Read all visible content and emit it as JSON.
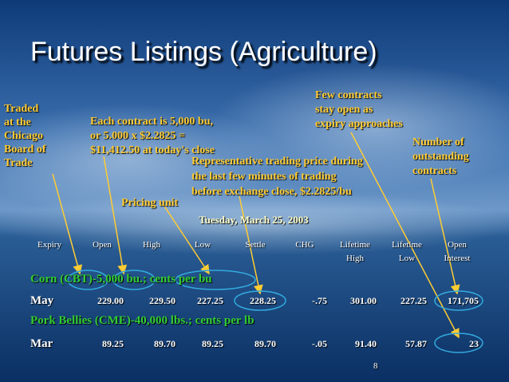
{
  "title": "Futures Listings (Agriculture)",
  "annotations": [
    {
      "lines": [
        "Traded",
        "at the",
        "Chicago",
        "Board of",
        "Trade"
      ]
    },
    {
      "lines": [
        "Each contract is 5,000 bu,",
        "or 5.000 x $2.2825 =",
        "$11,412.50 at today's close"
      ]
    },
    {
      "lines": [
        "Few contracts",
        "stay open as",
        "expiry approaches"
      ]
    },
    {
      "lines": [
        "Number of",
        "outstanding",
        "contracts"
      ]
    },
    {
      "lines": [
        "Representative trading price during",
        "the last few minutes of trading",
        "before exchange close, $2.2825/bu"
      ]
    },
    {
      "lines": [
        "Pricing unit"
      ]
    }
  ],
  "date": "Tuesday, March 25, 2003",
  "table": {
    "header": [
      [
        "Expiry"
      ],
      [
        "Open"
      ],
      [
        "High"
      ],
      [
        "Low"
      ],
      [
        "Settle"
      ],
      [
        "CHG"
      ],
      [
        "Lifetime",
        "High"
      ],
      [
        "Lifetime",
        "Low"
      ],
      [
        "Open",
        "Interest"
      ]
    ],
    "sections": [
      {
        "label": "Corn (CBT)-5,000 bu.; cents per bu",
        "rows": [
          [
            "May",
            "229.00",
            "229.50",
            "227.25",
            "228.25",
            "-.75",
            "301.00",
            "227.25",
            "171,705"
          ]
        ]
      },
      {
        "label": "Pork Bellies (CME)-40,000 lbs.; cents per lb",
        "rows": [
          [
            "Mar",
            "89.25",
            "89.70",
            "89.25",
            "89.70",
            "-.05",
            "91.40",
            "57.87",
            "23"
          ]
        ]
      }
    ]
  },
  "page_number": "8"
}
